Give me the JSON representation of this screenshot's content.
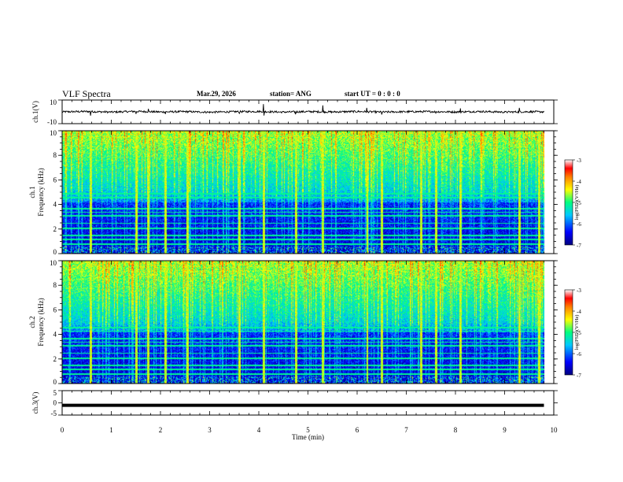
{
  "header": {
    "title": "VLF Spectra",
    "date": "Mar.29, 2026",
    "station": "station= ANG",
    "start": "start  UT =   0 : 0  : 0"
  },
  "chart_data": [
    {
      "type": "line",
      "panel": "ch1-waveform",
      "ylabel": "ch.1(V)",
      "ylim": [
        -10,
        10
      ],
      "yticks": [
        10,
        -10
      ],
      "xlim": [
        0,
        10
      ],
      "x": [
        0,
        0.5,
        1,
        1.5,
        2,
        2.5,
        3,
        3.5,
        4,
        4.5,
        5,
        5.5,
        6,
        6.5,
        7,
        7.5,
        8,
        8.5,
        9,
        9.5,
        9.8
      ],
      "y": [
        0,
        0.3,
        -0.2,
        0.4,
        -0.1,
        0.2,
        -0.3,
        0.1,
        0.3,
        -0.2,
        0.2,
        -0.1,
        0.3,
        -0.2,
        0.1,
        0.2,
        -0.1,
        0.3,
        -0.2,
        0.1,
        0
      ],
      "spikes_x": [
        0.58,
        1.5,
        1.75,
        2.1,
        3.6,
        4.1,
        4.75,
        5.3,
        6.2,
        6.5,
        7.6,
        8.1,
        9.3
      ],
      "spikes_y": [
        5,
        4,
        3,
        3,
        3,
        6,
        4,
        5,
        3,
        4,
        3,
        3,
        3
      ]
    },
    {
      "type": "heatmap",
      "panel": "ch1-spectrogram",
      "ylabel": "ch.1 Frequency (kHz)",
      "ylim": [
        0,
        10
      ],
      "yticks": [
        0,
        2,
        4,
        6,
        8,
        10
      ],
      "xlim": [
        0,
        10
      ],
      "colorbar": {
        "label": "log(PSD)(V²/Hz)",
        "range": [
          -7,
          -3
        ],
        "ticks": [
          -3,
          -4,
          -5,
          -6,
          -7
        ],
        "colors": [
          "#00007f",
          "#0000ff",
          "#00c8ff",
          "#00ff80",
          "#ffff00",
          "#ff7f00",
          "#ff0000",
          "#ffffff"
        ]
      },
      "narrowband_khz": [
        0.8,
        1.2,
        1.5,
        2.1,
        2.5,
        3.1,
        3.4,
        3.7,
        4.6,
        4.9
      ],
      "burst_times_min": [
        0.58,
        1.5,
        1.75,
        2.1,
        2.55,
        3.6,
        4.1,
        4.75,
        5.3,
        6.2,
        6.5,
        7.3,
        7.6,
        8.1,
        9.3,
        9.7
      ]
    },
    {
      "type": "heatmap",
      "panel": "ch2-spectrogram",
      "ylabel": "ch.2 Frequency (kHz)",
      "ylim": [
        0,
        10
      ],
      "yticks": [
        0,
        2,
        4,
        6,
        8,
        10
      ],
      "xlim": [
        0,
        10
      ],
      "colorbar": {
        "label": "log(PSD)(V²/Hz)",
        "range": [
          -7,
          -3
        ],
        "ticks": [
          -3,
          -4,
          -5,
          -6,
          -7
        ],
        "colors": [
          "#00007f",
          "#0000ff",
          "#00c8ff",
          "#00ff80",
          "#ffff00",
          "#ff7f00",
          "#ff0000",
          "#ffffff"
        ]
      },
      "narrowband_khz": [
        0.8,
        1.2,
        1.5,
        2.1,
        2.5,
        3.1,
        3.4,
        3.7,
        4.3,
        4.6
      ],
      "burst_times_min": [
        0.58,
        1.5,
        1.75,
        2.1,
        2.55,
        3.6,
        4.1,
        4.75,
        5.3,
        6.2,
        6.5,
        7.3,
        7.6,
        8.1,
        9.3,
        9.7
      ]
    },
    {
      "type": "line",
      "panel": "ch3-waveform",
      "ylabel": "ch.3(V)",
      "ylim": [
        -5,
        5
      ],
      "yticks": [
        5,
        0,
        -5
      ],
      "xlim": [
        0,
        10
      ],
      "x": [
        0,
        9.8
      ],
      "y": [
        -1,
        -1
      ],
      "xlabel": "Time (min)",
      "xticks": [
        0,
        1,
        2,
        3,
        4,
        5,
        6,
        7,
        8,
        9,
        10
      ]
    }
  ]
}
